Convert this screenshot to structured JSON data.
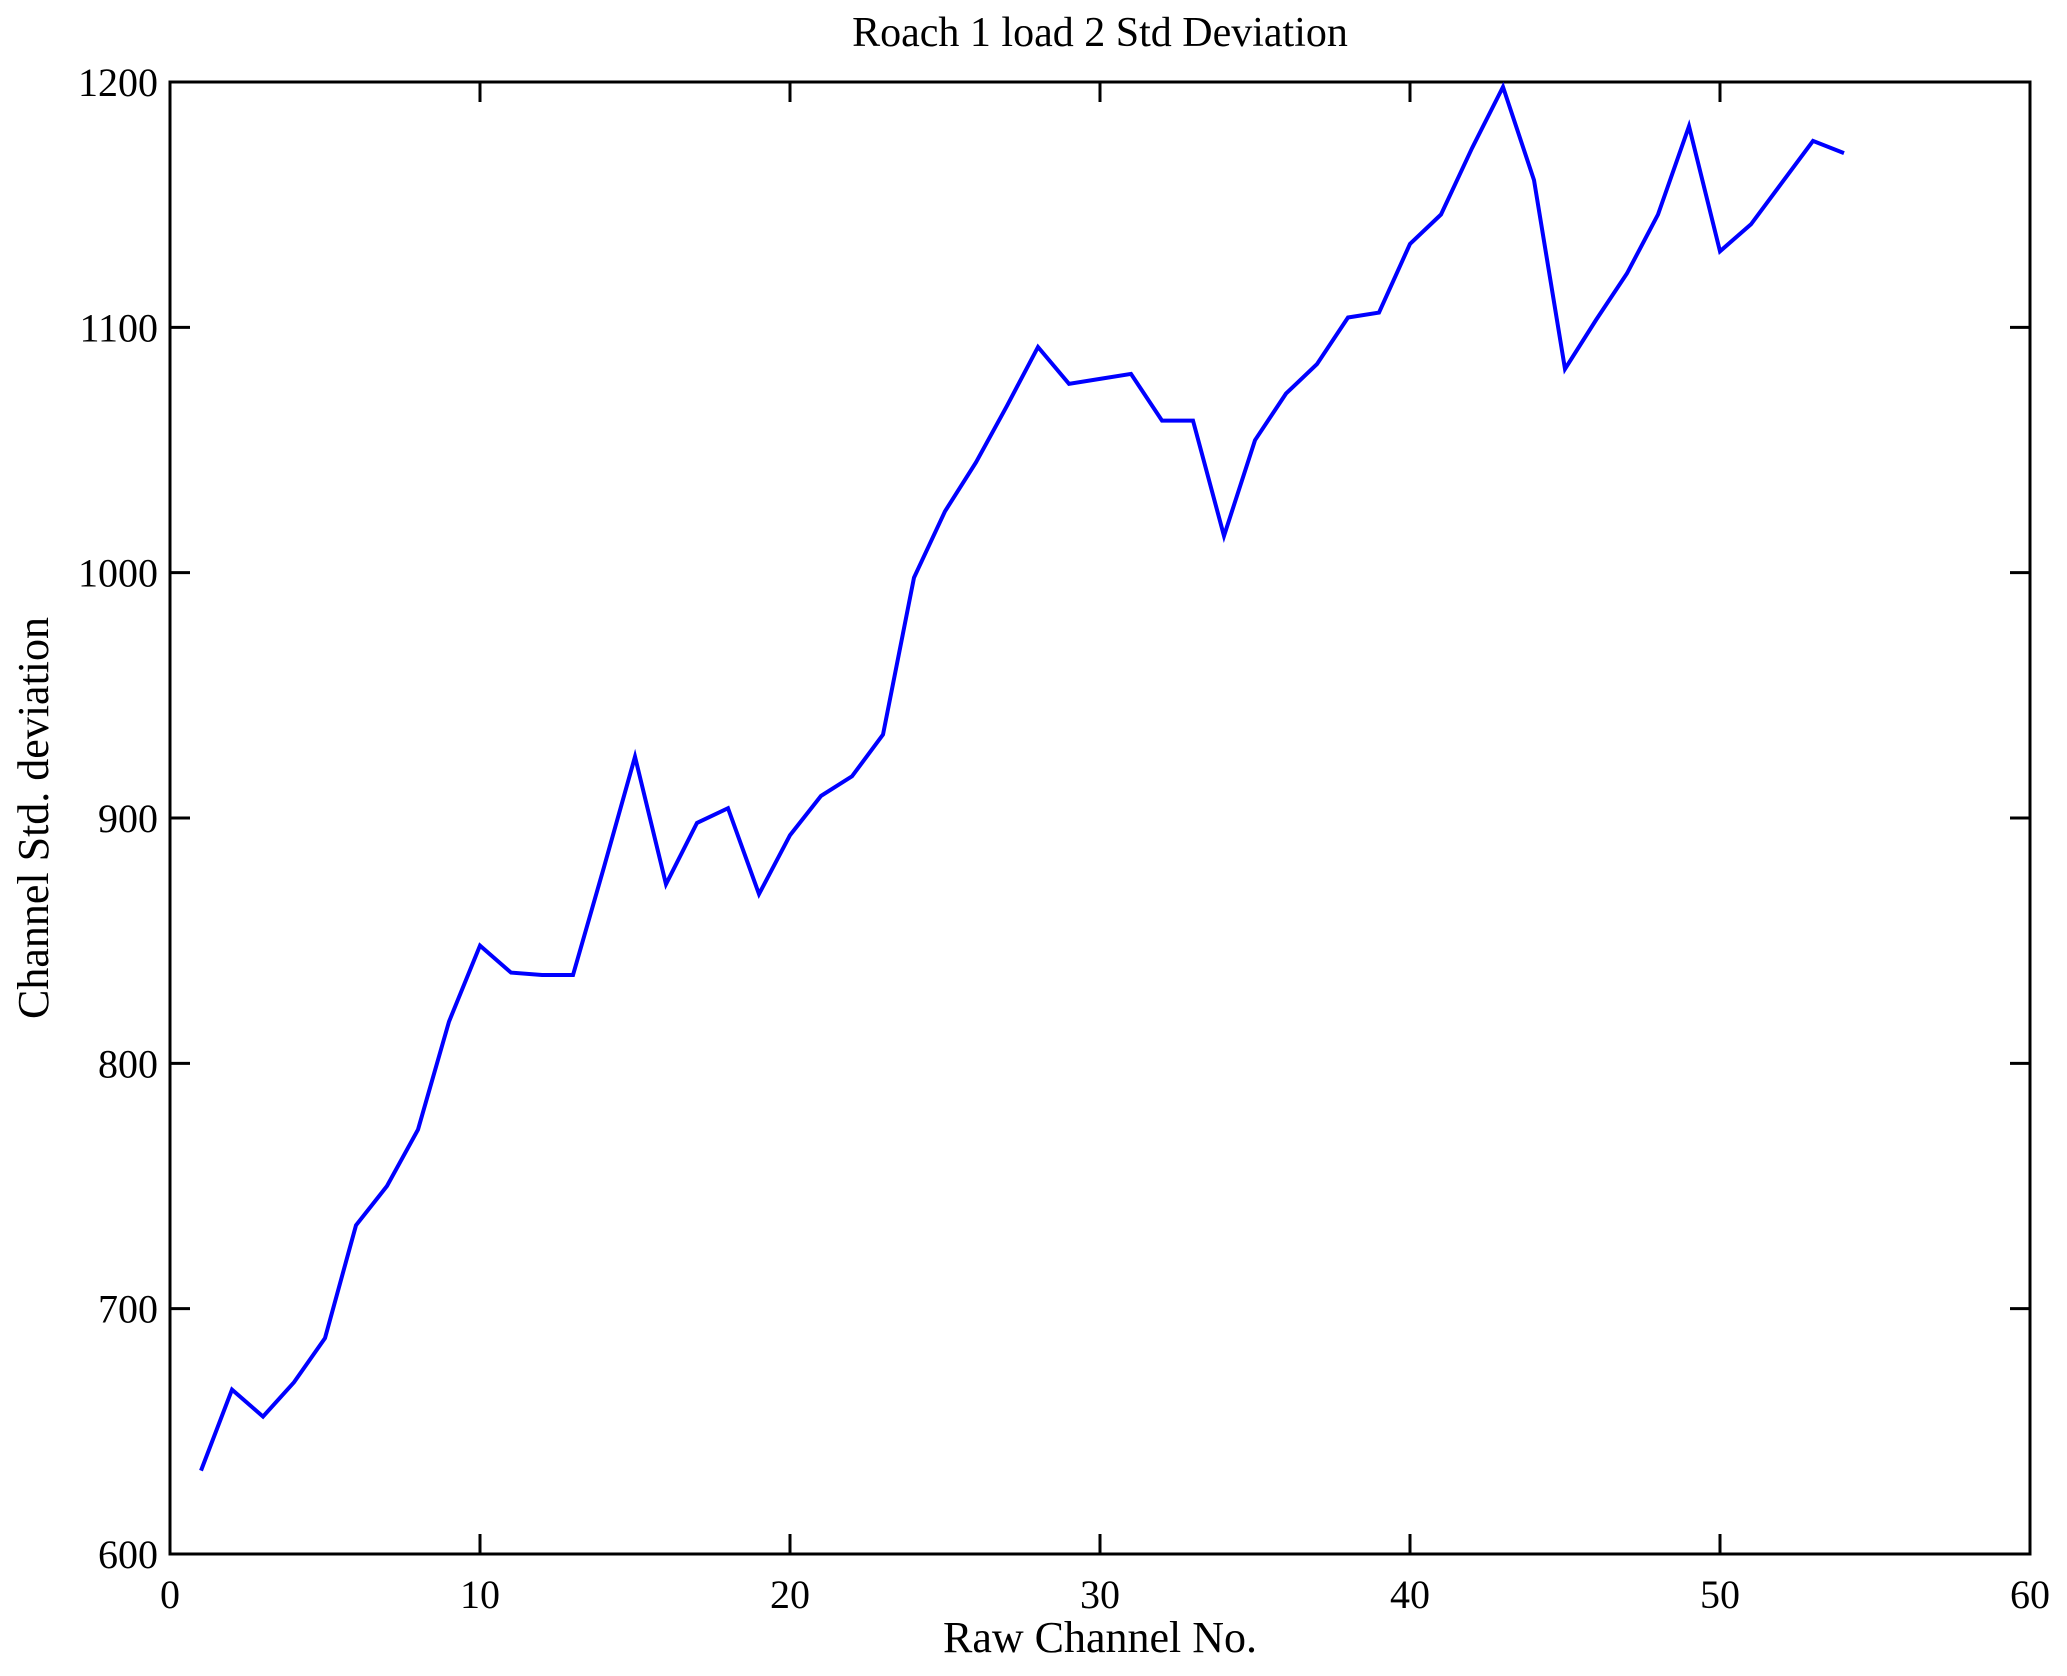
{
  "figure": {
    "background": "#ffffff",
    "axis_color": "#000000"
  },
  "chart_data": {
    "type": "line",
    "title": "Roach 1 load 2 Std Deviation",
    "xlabel": "Raw Channel No.",
    "ylabel": "Channel Std. deviation",
    "xlim": [
      0,
      60
    ],
    "ylim": [
      600,
      1200
    ],
    "x_ticks": [
      0,
      10,
      20,
      30,
      40,
      50,
      60
    ],
    "y_ticks": [
      600,
      700,
      800,
      900,
      1000,
      1100,
      1200
    ],
    "grid": false,
    "legend": "none",
    "line_color": "#0000ff",
    "series": [
      {
        "name": "channel-std-deviation",
        "x": [
          1,
          2,
          3,
          4,
          5,
          6,
          7,
          8,
          9,
          10,
          11,
          12,
          13,
          14,
          15,
          16,
          17,
          18,
          19,
          20,
          21,
          22,
          23,
          24,
          25,
          26,
          27,
          28,
          29,
          30,
          31,
          32,
          33,
          34,
          35,
          36,
          37,
          38,
          39,
          40,
          41,
          42,
          43,
          44,
          45,
          46,
          47,
          48,
          49,
          50,
          51,
          52,
          53,
          54
        ],
        "values": [
          634,
          667,
          656,
          670,
          688,
          734,
          750,
          773,
          817,
          848,
          837,
          836,
          836,
          880,
          925,
          873,
          898,
          904,
          869,
          893,
          909,
          917,
          934,
          998,
          1025,
          1045,
          1068,
          1092,
          1077,
          1079,
          1081,
          1062,
          1062,
          1015,
          1054,
          1073,
          1085,
          1104,
          1106,
          1134,
          1146,
          1173,
          1198,
          1160,
          1083,
          1103,
          1122,
          1146,
          1182,
          1131,
          1142,
          1159,
          1176,
          1171
        ]
      }
    ]
  }
}
